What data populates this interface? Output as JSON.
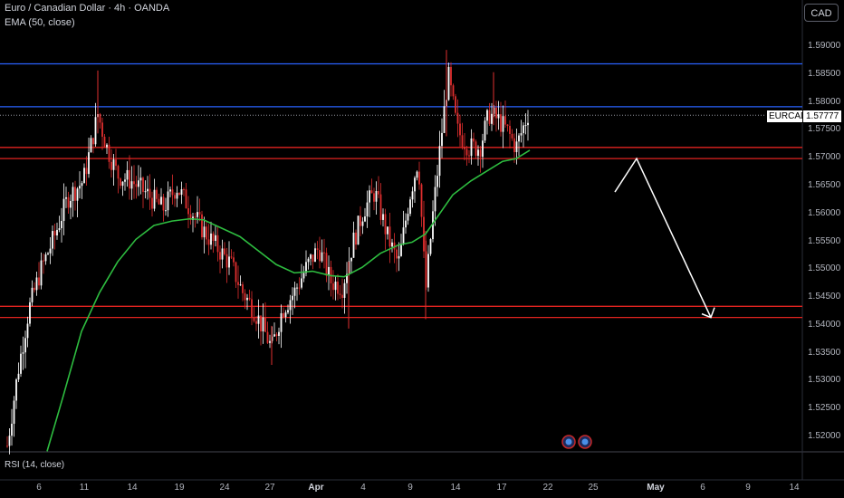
{
  "header": {
    "title": "Euro / Canadian Dollar · 4h · OANDA",
    "indicator": "EMA (50, close)"
  },
  "currency_button": "CAD",
  "symbol_tag": "EURCAD",
  "last_price": "1.57777",
  "rsi_label": "RSI (14, close)",
  "colors": {
    "background": "#000000",
    "up_candle": "#ffffff",
    "down_candle": "#e02f2f",
    "ema": "#2ebd40",
    "blue_line": "#2962ff",
    "red_line": "#e0231f",
    "arrow": "#ffffff"
  },
  "icons": [
    "event-icon",
    "event-icon"
  ],
  "chart_data": {
    "type": "candlestick",
    "title": "Euro / Canadian Dollar · 4h · OANDA",
    "y_ticks": [
      "1.59000",
      "1.58500",
      "1.58000",
      "1.57500",
      "1.57000",
      "1.56500",
      "1.56000",
      "1.55500",
      "1.55000",
      "1.54500",
      "1.54000",
      "1.53500",
      "1.53000",
      "1.52500",
      "1.52000"
    ],
    "x_ticks": [
      "6",
      "11",
      "14",
      "19",
      "24",
      "27",
      "Apr",
      "4",
      "9",
      "14",
      "17",
      "22",
      "25",
      "May",
      "6",
      "9",
      "14"
    ],
    "ylim": [
      1.5178,
      1.5935
    ],
    "horizontal_levels": [
      {
        "color": "blue",
        "price": 1.587
      },
      {
        "color": "blue",
        "price": 1.5793
      },
      {
        "color": "red",
        "price": 1.572
      },
      {
        "color": "red",
        "price": 1.57
      },
      {
        "color": "red",
        "price": 1.5435
      },
      {
        "color": "red",
        "price": 1.5415
      }
    ],
    "projection_arrow": [
      [
        1.564
      ],
      [
        1.57
      ],
      [
        1.5415
      ]
    ],
    "ema_label": "EMA (50, close)"
  }
}
